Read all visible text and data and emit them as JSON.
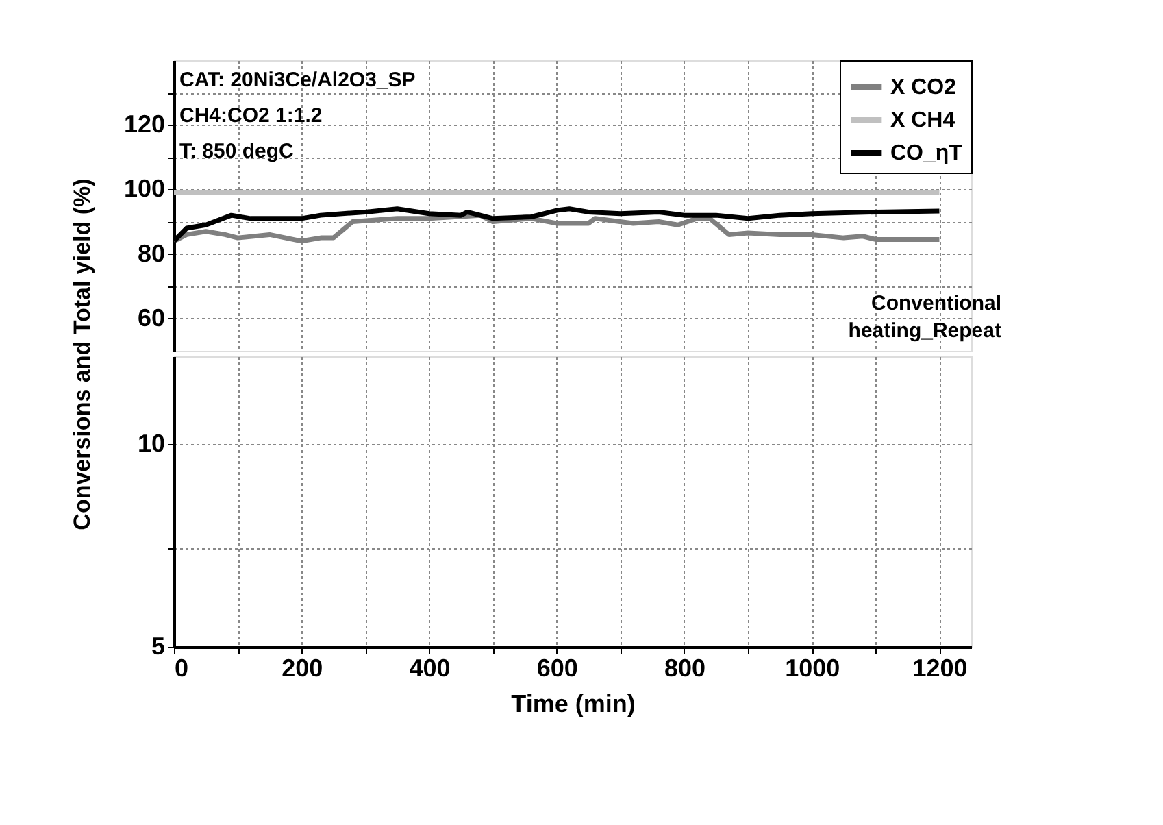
{
  "chart_data": [
    {
      "type": "line",
      "ylabel": "Conversions and Total yield (%)",
      "xlim": [
        0,
        1250
      ],
      "ylim": [
        50,
        140
      ],
      "xticks": [
        0,
        {
          "value": 100,
          "label": null
        },
        200,
        {
          "value": 300,
          "label": null
        },
        400,
        {
          "value": 500,
          "label": null
        },
        600,
        {
          "value": 700,
          "label": null
        },
        800,
        {
          "value": 900,
          "label": null
        },
        1000,
        {
          "value": 1100,
          "label": null
        },
        1200
      ],
      "yticks": [
        60,
        {
          "value": 70,
          "label": null
        },
        80,
        {
          "value": 90,
          "label": null
        },
        100,
        {
          "value": 110,
          "label": null
        },
        120,
        {
          "value": 130,
          "label": null
        }
      ],
      "tick_labels": "y",
      "grid": true,
      "legend": "top right",
      "line_style": "solid",
      "marker": "none",
      "annotations": [
        "CAT: 20Ni3Ce/Al2O3_SP",
        "CH4:CO2 1:1.2",
        "T: 850 degC",
        "Conventional\nheating_Repeat"
      ],
      "series": [
        {
          "name": "X CO2",
          "color": "#808080",
          "x": [
            0,
            20,
            50,
            80,
            100,
            150,
            200,
            230,
            250,
            280,
            350,
            400,
            480,
            500,
            560,
            600,
            650,
            660,
            720,
            760,
            790,
            820,
            840,
            870,
            900,
            950,
            1000,
            1050,
            1080,
            1100,
            1150,
            1200
          ],
          "values": [
            84,
            86,
            87,
            86,
            85,
            86,
            84,
            85,
            85,
            90,
            91,
            91,
            92,
            90,
            91,
            89.5,
            89.5,
            91,
            89.5,
            90,
            89,
            91,
            91,
            86,
            86.5,
            86,
            86,
            85,
            85.5,
            84.5,
            84.5,
            84.5
          ]
        },
        {
          "name": "X CH4",
          "color": "#c0c0c0",
          "x": [
            0,
            300,
            600,
            900,
            1200
          ],
          "values": [
            99,
            99,
            99,
            99,
            99
          ]
        },
        {
          "name": "CO_ηT",
          "color": "#000000",
          "x": [
            0,
            20,
            50,
            90,
            120,
            200,
            230,
            300,
            350,
            400,
            450,
            460,
            500,
            560,
            600,
            620,
            650,
            700,
            760,
            800,
            850,
            900,
            950,
            1000,
            1100,
            1200
          ],
          "values": [
            84,
            88,
            89,
            92,
            91,
            91,
            92,
            93,
            94,
            92.5,
            92,
            93,
            91,
            91.5,
            93.5,
            94,
            93,
            92.5,
            93,
            92,
            92,
            91,
            92,
            92.5,
            93,
            93.3
          ]
        }
      ]
    },
    {
      "type": "line",
      "xlabel": "Time (min)",
      "xlim": [
        0,
        1250
      ],
      "ylim": [
        5,
        13.5
      ],
      "log": true,
      "xticks": [
        0,
        {
          "value": 100,
          "label": null
        },
        200,
        {
          "value": 300,
          "label": null
        },
        400,
        {
          "value": 500,
          "label": null
        },
        600,
        {
          "value": 700,
          "label": null
        },
        800,
        {
          "value": 900,
          "label": null
        },
        1000,
        {
          "value": 1100,
          "label": null
        },
        1200
      ],
      "yticks": [
        5,
        {
          "value": 7,
          "label": null
        },
        10
      ],
      "grid": true
    }
  ]
}
